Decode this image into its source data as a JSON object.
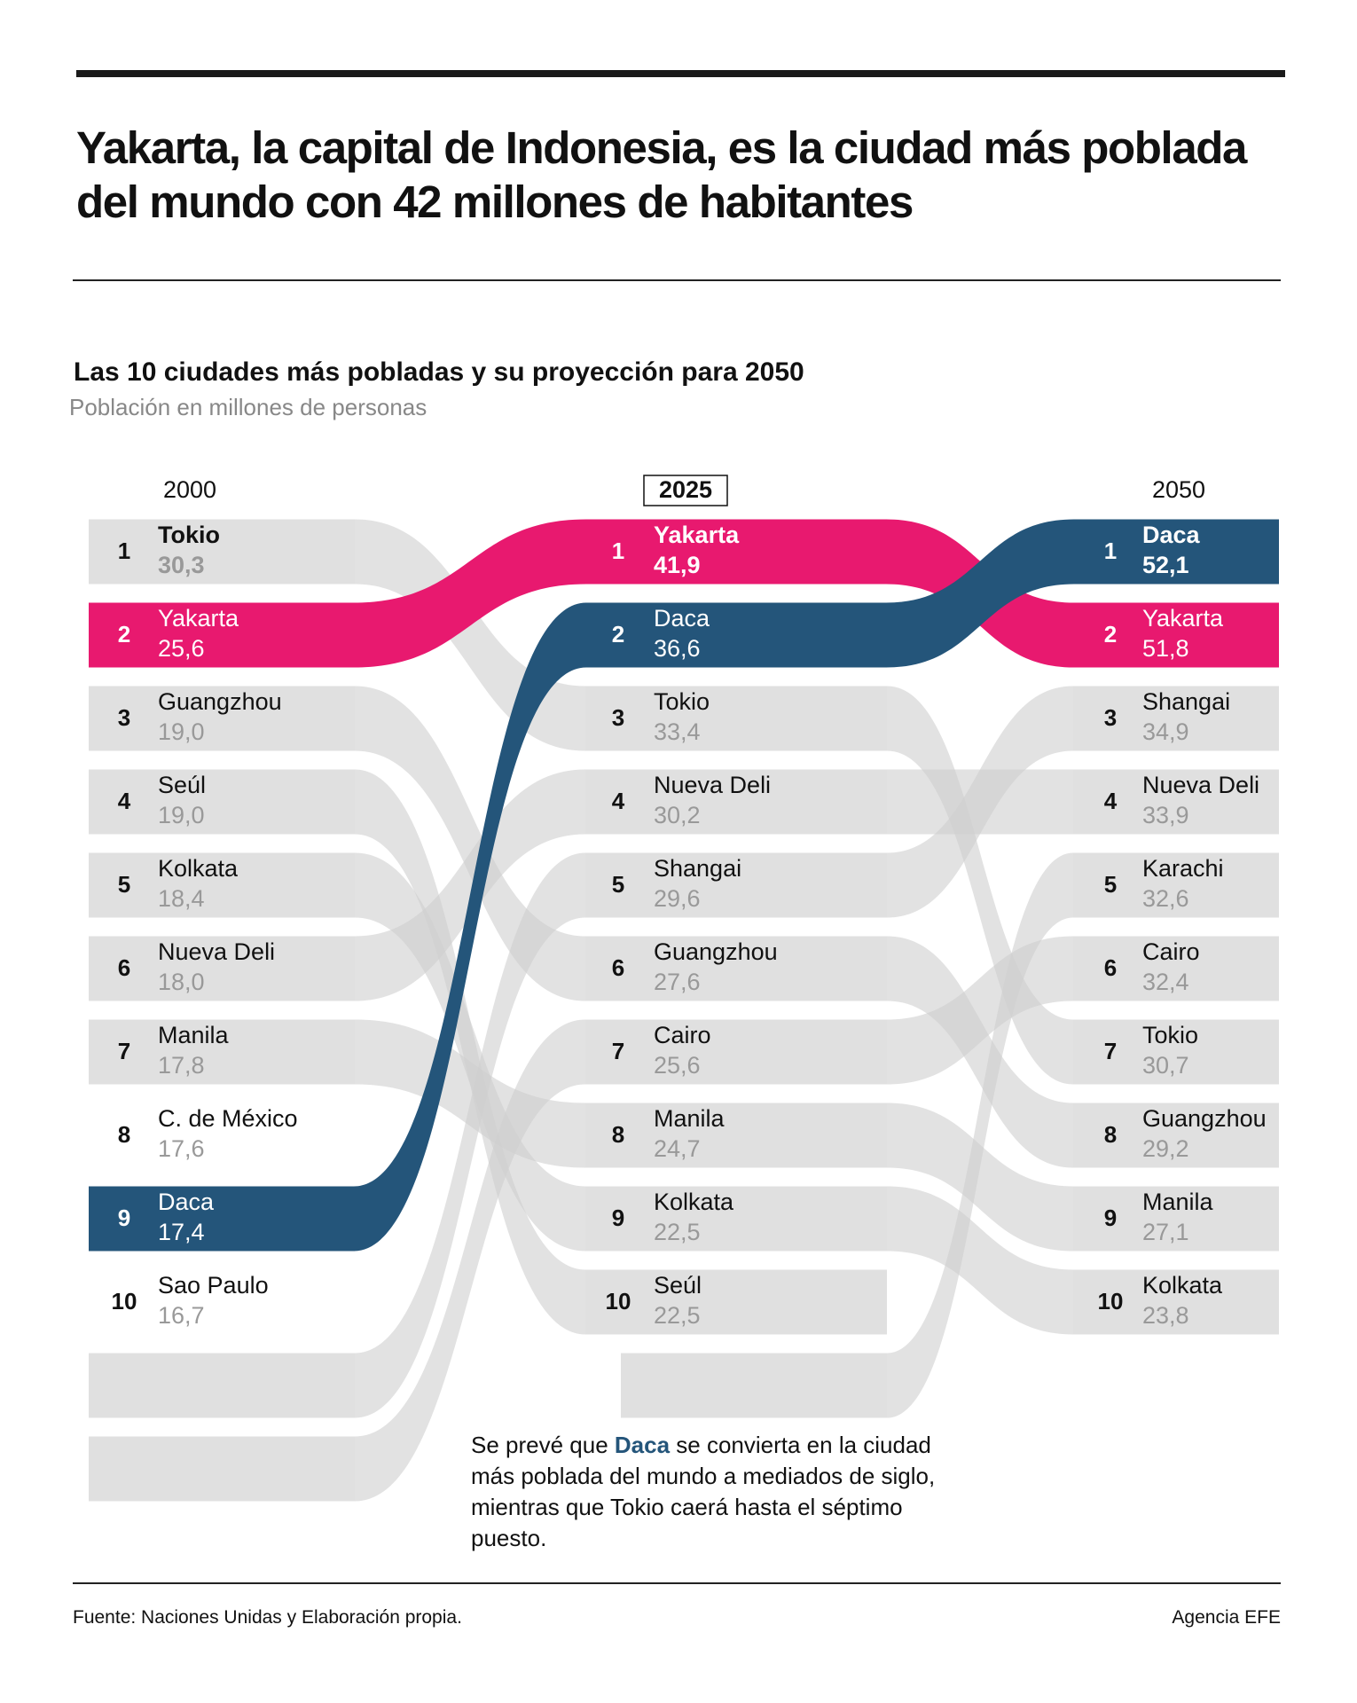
{
  "headline": "Yakarta, la capital de Indonesia, es la ciudad más poblada del mundo con 42 millones de habitantes",
  "chart_data": {
    "type": "bump",
    "title": "Las 10 ciudades más pobladas y su proyección para 2050",
    "subtitle": "Población en millones de personas",
    "color": "#e0e0e0",
    "boxed_period": 1,
    "highlight": [
      {
        "name": "Yakarta",
        "color": "#e8196f"
      },
      {
        "name": "Daca",
        "color": "#24557a"
      }
    ],
    "columns": [
      {
        "period": "2000",
        "ranks": [
          1,
          2,
          3,
          4,
          5,
          6,
          7,
          8,
          9,
          10
        ],
        "cities": [
          "Tokio",
          "Yakarta",
          "Guangzhou",
          "Seúl",
          "Kolkata",
          "Nueva Deli",
          "Manila",
          "C. de México",
          "Daca",
          "Sao Paulo"
        ],
        "values": [
          30.3,
          25.6,
          19.0,
          19.0,
          18.4,
          18.0,
          17.8,
          17.6,
          17.4,
          16.7
        ],
        "value_labels": [
          "30,3",
          "25,6",
          "19,0",
          "19,0",
          "18,4",
          "18,0",
          "17,8",
          "17,6",
          "17,4",
          "16,7"
        ]
      },
      {
        "period": "2025",
        "ranks": [
          1,
          2,
          3,
          4,
          5,
          6,
          7,
          8,
          9,
          10
        ],
        "cities": [
          "Yakarta",
          "Daca",
          "Tokio",
          "Nueva Deli",
          "Shangai",
          "Guangzhou",
          "Cairo",
          "Manila",
          "Kolkata",
          "Seúl"
        ],
        "values": [
          41.9,
          36.6,
          33.4,
          30.2,
          29.6,
          27.6,
          25.6,
          24.7,
          22.5,
          22.5
        ],
        "value_labels": [
          "41,9",
          "36,6",
          "33,4",
          "30,2",
          "29,6",
          "27,6",
          "25,6",
          "24,7",
          "22,5",
          "22,5"
        ]
      },
      {
        "period": "2050",
        "ranks": [
          1,
          2,
          3,
          4,
          5,
          6,
          7,
          8,
          9,
          10
        ],
        "cities": [
          "Daca",
          "Yakarta",
          "Shangai",
          "Nueva Deli",
          "Karachi",
          "Cairo",
          "Tokio",
          "Guangzhou",
          "Manila",
          "Kolkata"
        ],
        "values": [
          52.1,
          51.8,
          34.9,
          33.9,
          32.6,
          32.4,
          30.7,
          29.2,
          27.1,
          23.8
        ],
        "value_labels": [
          "52,1",
          "51,8",
          "34,9",
          "33,9",
          "32,6",
          "32,4",
          "30,7",
          "29,2",
          "27,1",
          "23,8"
        ]
      }
    ],
    "annotation": [
      "Se prevé que ",
      "Daca",
      " se convierta en la ciudad más poblada del mundo a mediados de siglo, mientras que Tokio caerá hasta el séptimo puesto."
    ]
  },
  "footer": {
    "source": "Fuente: Naciones Unidas y Elaboración propia.",
    "credit": "Agencia EFE"
  }
}
